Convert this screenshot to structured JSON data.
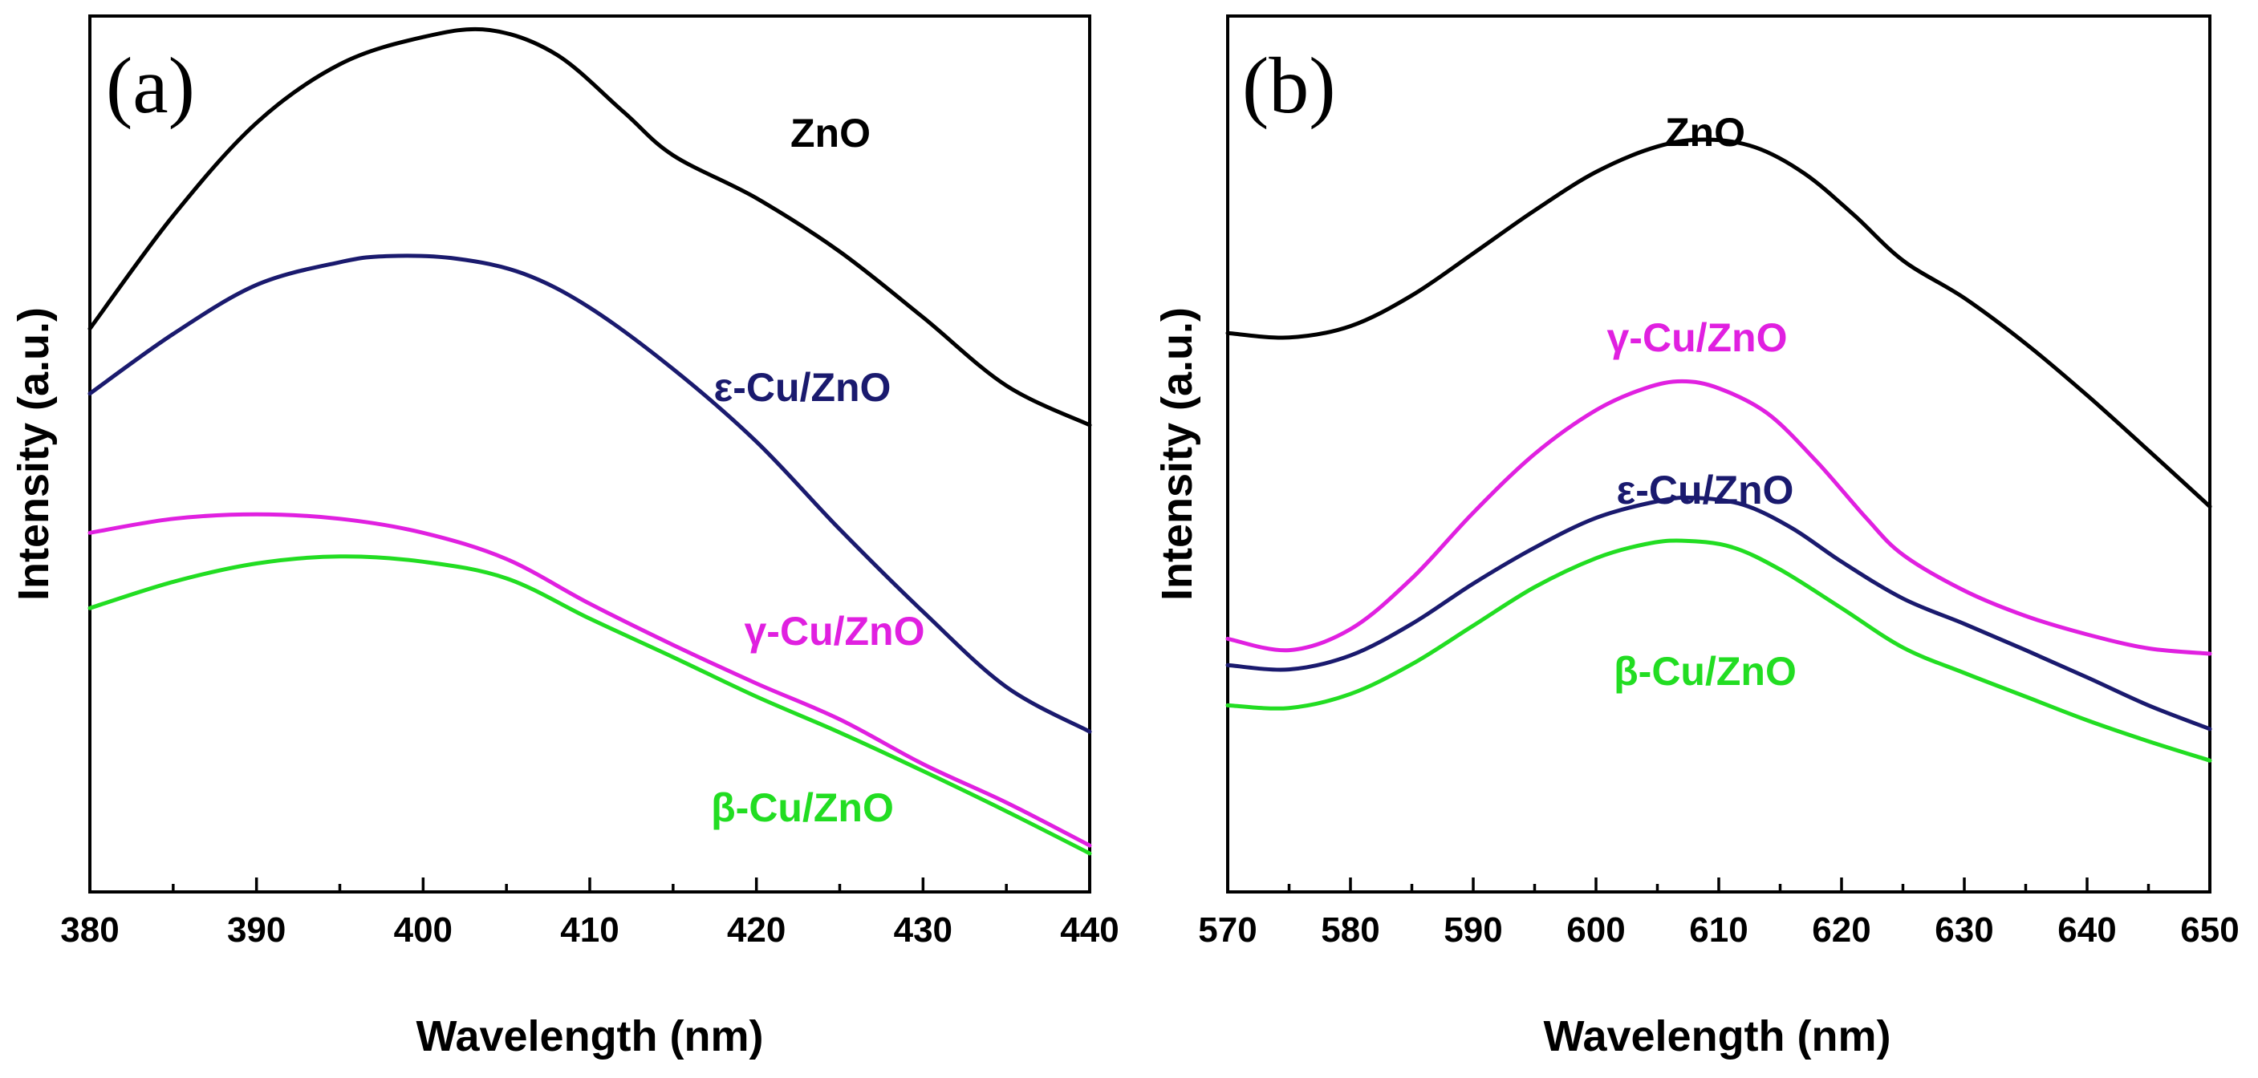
{
  "chart_data": [
    {
      "type": "line",
      "panel_label": "(a)",
      "title": "",
      "xlabel": "Wavelength (nm)",
      "ylabel": "Intensity (a.u.)",
      "xlim": [
        380,
        440
      ],
      "ylim": [
        0,
        100
      ],
      "x_ticks": [
        380,
        390,
        400,
        410,
        420,
        430,
        440
      ],
      "x_tick_labels": [
        "380",
        "390",
        "400",
        "410",
        "420",
        "430",
        "440"
      ],
      "grid": false,
      "series": [
        {
          "name": "ZnO",
          "color": "#000000",
          "points": [
            [
              380,
              64.3
            ],
            [
              385,
              77.2
            ],
            [
              390,
              87.8
            ],
            [
              395,
              94.5
            ],
            [
              400,
              97.6
            ],
            [
              404,
              98.4
            ],
            [
              408,
              95.6
            ],
            [
              412,
              89.1
            ],
            [
              415,
              84.1
            ],
            [
              420,
              79.2
            ],
            [
              425,
              73.1
            ],
            [
              430,
              65.6
            ],
            [
              435,
              57.8
            ],
            [
              440,
              53.3
            ]
          ]
        },
        {
          "name": "ε-Cu/ZnO",
          "color": "#1a1a6e",
          "points": [
            [
              380,
              56.9
            ],
            [
              385,
              63.7
            ],
            [
              390,
              69.3
            ],
            [
              395,
              71.9
            ],
            [
              398,
              72.6
            ],
            [
              402,
              72.3
            ],
            [
              406,
              70.6
            ],
            [
              410,
              66.7
            ],
            [
              415,
              59.7
            ],
            [
              420,
              51.4
            ],
            [
              425,
              41.4
            ],
            [
              430,
              32.0
            ],
            [
              435,
              23.4
            ],
            [
              440,
              18.3
            ]
          ]
        },
        {
          "name": "γ-Cu/ZnO",
          "color": "#e020e0",
          "points": [
            [
              380,
              41.0
            ],
            [
              385,
              42.6
            ],
            [
              390,
              43.1
            ],
            [
              395,
              42.6
            ],
            [
              400,
              41.0
            ],
            [
              405,
              38.0
            ],
            [
              410,
              32.9
            ],
            [
              415,
              28.2
            ],
            [
              420,
              23.8
            ],
            [
              425,
              19.7
            ],
            [
              430,
              14.6
            ],
            [
              435,
              10.2
            ],
            [
              440,
              5.3
            ]
          ]
        },
        {
          "name": "β-Cu/ZnO",
          "color": "#22dd22",
          "points": [
            [
              380,
              32.4
            ],
            [
              385,
              35.4
            ],
            [
              390,
              37.5
            ],
            [
              395,
              38.3
            ],
            [
              400,
              37.7
            ],
            [
              405,
              35.8
            ],
            [
              410,
              31.2
            ],
            [
              415,
              26.8
            ],
            [
              420,
              22.3
            ],
            [
              425,
              18.2
            ],
            [
              430,
              13.8
            ],
            [
              435,
              9.2
            ],
            [
              440,
              4.4
            ]
          ]
        }
      ],
      "annotations": [
        {
          "text": "ZnO",
          "series": "ZnO"
        },
        {
          "text": "ε-Cu/ZnO",
          "series": "ε-Cu/ZnO"
        },
        {
          "text": "γ-Cu/ZnO",
          "series": "γ-Cu/ZnO"
        },
        {
          "text": "β-Cu/ZnO",
          "series": "β-Cu/ZnO"
        }
      ]
    },
    {
      "type": "line",
      "panel_label": "(b)",
      "title": "",
      "xlabel": "Wavelength (nm)",
      "ylabel": "Intensity (a.u.)",
      "xlim": [
        570,
        650
      ],
      "ylim": [
        0,
        100
      ],
      "x_ticks": [
        570,
        580,
        590,
        600,
        610,
        620,
        630,
        640,
        650
      ],
      "x_tick_labels": [
        "570",
        "580",
        "590",
        "600",
        "610",
        "620",
        "630",
        "640",
        "650"
      ],
      "grid": false,
      "series": [
        {
          "name": "ZnO",
          "color": "#000000",
          "points": [
            [
              570,
              63.8
            ],
            [
              575,
              63.3
            ],
            [
              580,
              64.6
            ],
            [
              585,
              68.1
            ],
            [
              590,
              72.9
            ],
            [
              595,
              77.8
            ],
            [
              600,
              82.2
            ],
            [
              605,
              85.1
            ],
            [
              609,
              85.9
            ],
            [
              613,
              85.0
            ],
            [
              617,
              82.0
            ],
            [
              621,
              77.3
            ],
            [
              625,
              72.1
            ],
            [
              630,
              67.8
            ],
            [
              635,
              62.6
            ],
            [
              640,
              56.7
            ],
            [
              645,
              50.4
            ],
            [
              650,
              44.0
            ]
          ]
        },
        {
          "name": "γ-Cu/ZnO",
          "color": "#e020e0",
          "points": [
            [
              570,
              28.9
            ],
            [
              575,
              27.6
            ],
            [
              580,
              30.0
            ],
            [
              585,
              35.8
            ],
            [
              590,
              43.3
            ],
            [
              595,
              50.0
            ],
            [
              600,
              55.0
            ],
            [
              604,
              57.5
            ],
            [
              607,
              58.3
            ],
            [
              610,
              57.5
            ],
            [
              614,
              54.6
            ],
            [
              618,
              49.1
            ],
            [
              622,
              42.7
            ],
            [
              625,
              38.5
            ],
            [
              630,
              34.4
            ],
            [
              635,
              31.5
            ],
            [
              640,
              29.4
            ],
            [
              645,
              27.8
            ],
            [
              650,
              27.2
            ]
          ]
        },
        {
          "name": "ε-Cu/ZnO",
          "color": "#1a1a6e",
          "points": [
            [
              570,
              25.9
            ],
            [
              575,
              25.4
            ],
            [
              580,
              27.0
            ],
            [
              585,
              30.6
            ],
            [
              590,
              35.2
            ],
            [
              595,
              39.3
            ],
            [
              600,
              42.7
            ],
            [
              605,
              44.6
            ],
            [
              608,
              45.0
            ],
            [
              612,
              44.2
            ],
            [
              616,
              41.5
            ],
            [
              620,
              37.7
            ],
            [
              625,
              33.5
            ],
            [
              630,
              30.6
            ],
            [
              635,
              27.6
            ],
            [
              640,
              24.5
            ],
            [
              645,
              21.3
            ],
            [
              650,
              18.6
            ]
          ]
        },
        {
          "name": "β-Cu/ZnO",
          "color": "#22dd22",
          "points": [
            [
              570,
              21.3
            ],
            [
              575,
              21.0
            ],
            [
              580,
              22.6
            ],
            [
              585,
              26.0
            ],
            [
              590,
              30.4
            ],
            [
              595,
              34.8
            ],
            [
              600,
              38.1
            ],
            [
              604,
              39.7
            ],
            [
              607,
              40.1
            ],
            [
              611,
              39.4
            ],
            [
              615,
              36.8
            ],
            [
              620,
              32.4
            ],
            [
              625,
              27.9
            ],
            [
              630,
              25.0
            ],
            [
              635,
              22.3
            ],
            [
              640,
              19.6
            ],
            [
              645,
              17.2
            ],
            [
              650,
              15.0
            ]
          ]
        }
      ],
      "annotations": [
        {
          "text": "ZnO",
          "series": "ZnO"
        },
        {
          "text": "γ-Cu/ZnO",
          "series": "γ-Cu/ZnO"
        },
        {
          "text": "ε-Cu/ZnO",
          "series": "ε-Cu/ZnO"
        },
        {
          "text": "β-Cu/ZnO",
          "series": "β-Cu/ZnO"
        }
      ]
    }
  ]
}
